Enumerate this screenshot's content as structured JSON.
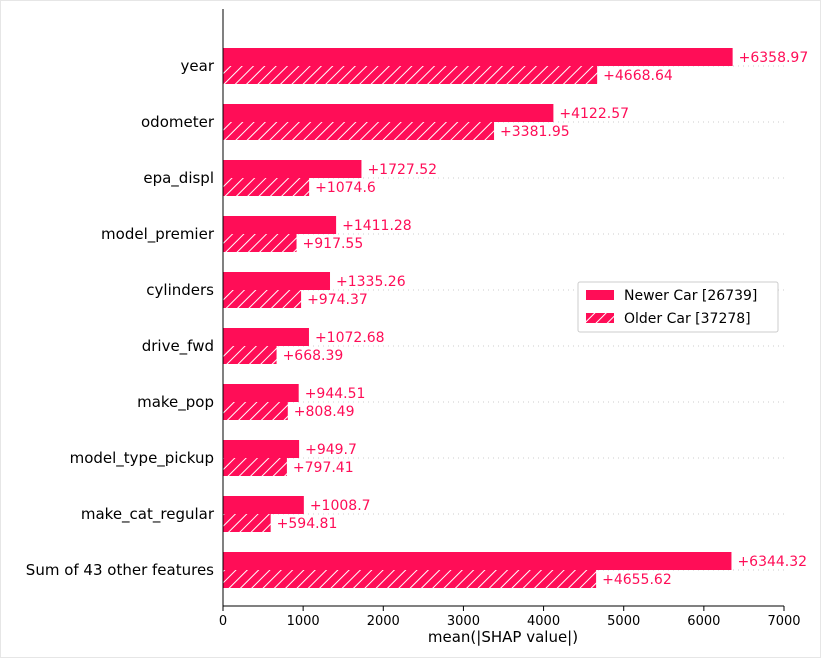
{
  "chart_data": {
    "type": "bar",
    "categories": [
      "year",
      "odometer",
      "epa_displ",
      "model_premier",
      "cylinders",
      "drive_fwd",
      "make_pop",
      "model_type_pickup",
      "make_cat_regular",
      "Sum of 43 other features"
    ],
    "series": [
      {
        "name": "Newer Car [26739]",
        "values": [
          6358.97,
          4122.57,
          1727.52,
          1411.28,
          1335.26,
          1072.68,
          944.51,
          949.7,
          1008.7,
          6344.32
        ],
        "labels": [
          "+6358.97",
          "+4122.57",
          "+1727.52",
          "+1411.28",
          "+1335.26",
          "+1072.68",
          "+944.51",
          "+949.7",
          "+1008.7",
          "+6344.32"
        ],
        "pattern": "solid"
      },
      {
        "name": "Older Car [37278]",
        "values": [
          4668.64,
          3381.95,
          1074.6,
          917.55,
          974.37,
          668.39,
          808.49,
          797.41,
          594.81,
          4655.62
        ],
        "labels": [
          "+4668.64",
          "+3381.95",
          "+1074.6",
          "+917.55",
          "+974.37",
          "+668.39",
          "+808.49",
          "+797.41",
          "+594.81",
          "+4655.62"
        ],
        "pattern": "hatched"
      }
    ],
    "xlabel": "mean(|SHAP value|)",
    "xlim": [
      0,
      7000
    ],
    "xticks": [
      0,
      1000,
      2000,
      3000,
      4000,
      5000,
      6000,
      7000
    ],
    "grid": "horizontal dotted",
    "legend": "center-right"
  },
  "colors": {
    "bar": "#ff0d57",
    "label": "#ff0d57",
    "axis": "#000000",
    "text": "#000000",
    "grid": "#cccccc"
  }
}
